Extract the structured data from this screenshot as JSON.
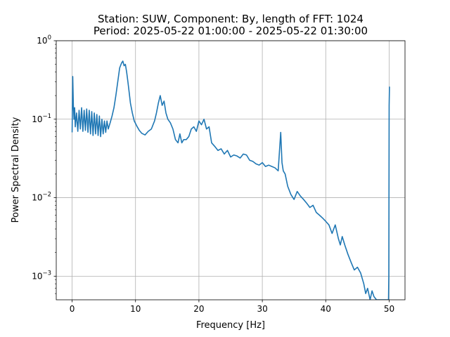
{
  "chart_data": {
    "type": "line",
    "title": "Station: SUW, Component: By, length of FFT: 1024",
    "subtitle": "Period: 2025-05-22 01:00:00 - 2025-05-22 01:30:00",
    "xlabel": "Frequency [Hz]",
    "ylabel": "Power Spectral Density",
    "xlim": [
      -2.5,
      52.5
    ],
    "ylim": [
      0.0005,
      1
    ],
    "yscale": "log",
    "grid": true,
    "xticks": [
      0,
      10,
      20,
      30,
      40,
      50
    ],
    "xtick_labels": [
      "0",
      "10",
      "20",
      "30",
      "40",
      "50"
    ],
    "yticks": [
      0.001,
      0.01,
      0.1,
      1
    ],
    "ytick_labels": [
      {
        "base": "10",
        "exp": "−3"
      },
      {
        "base": "10",
        "exp": "−2"
      },
      {
        "base": "10",
        "exp": "−1"
      },
      {
        "base": "10",
        "exp": "0"
      }
    ],
    "line_color": "#1f77b4",
    "series": [
      {
        "x": [
          0,
          0.1,
          0.2,
          0.3,
          0.4,
          0.5,
          0.7,
          0.9,
          1.1,
          1.3,
          1.5,
          1.7,
          1.9,
          2.1,
          2.3,
          2.5,
          2.7,
          2.9,
          3.1,
          3.3,
          3.5,
          3.7,
          3.9,
          4.1,
          4.3,
          4.5,
          4.7,
          4.9,
          5.1,
          5.3,
          5.5,
          5.7,
          6.0,
          6.3,
          6.6,
          6.9,
          7.2,
          7.5,
          7.8,
          8.0,
          8.2,
          8.4,
          8.6,
          8.8,
          9.0,
          9.2,
          9.5,
          9.8,
          10.2,
          10.6,
          11.0,
          11.5,
          12.0,
          12.5,
          13.0,
          13.3,
          13.6,
          13.9,
          14.2,
          14.5,
          14.8,
          15.1,
          15.5,
          15.9,
          16.3,
          16.7,
          17.0,
          17.3,
          17.6,
          18.0,
          18.4,
          18.8,
          19.2,
          19.6,
          20.0,
          20.4,
          20.8,
          21.2,
          21.6,
          22.0,
          22.5,
          23.0,
          23.5,
          24.0,
          24.5,
          25.0,
          25.5,
          26.0,
          26.5,
          27.0,
          27.5,
          28.0,
          28.5,
          29.0,
          29.5,
          30.0,
          30.5,
          31.0,
          31.5,
          32.0,
          32.5,
          32.9,
          33.1,
          33.3,
          33.6,
          34.0,
          34.5,
          35.0,
          35.5,
          36.0,
          36.5,
          37.0,
          37.5,
          38.0,
          38.5,
          39.0,
          39.5,
          40.0,
          40.5,
          41.0,
          41.5,
          42.0,
          42.3,
          42.6,
          43.0,
          43.5,
          44.0,
          44.5,
          45.0,
          45.5,
          46.0,
          46.3,
          46.6,
          47.0,
          47.3,
          47.6,
          48.0,
          48.4,
          48.8,
          49.2,
          49.6,
          49.8,
          49.9,
          49.95,
          50.0,
          50.05
        ],
        "y": [
          0.068,
          0.35,
          0.15,
          0.1,
          0.14,
          0.08,
          0.12,
          0.07,
          0.13,
          0.075,
          0.14,
          0.07,
          0.13,
          0.072,
          0.135,
          0.068,
          0.13,
          0.065,
          0.125,
          0.062,
          0.12,
          0.065,
          0.115,
          0.062,
          0.11,
          0.06,
          0.1,
          0.065,
          0.095,
          0.068,
          0.095,
          0.075,
          0.09,
          0.11,
          0.14,
          0.2,
          0.3,
          0.45,
          0.52,
          0.55,
          0.48,
          0.5,
          0.4,
          0.3,
          0.22,
          0.16,
          0.12,
          0.095,
          0.082,
          0.072,
          0.066,
          0.063,
          0.07,
          0.075,
          0.095,
          0.12,
          0.16,
          0.2,
          0.15,
          0.17,
          0.12,
          0.1,
          0.09,
          0.075,
          0.055,
          0.05,
          0.065,
          0.05,
          0.055,
          0.055,
          0.06,
          0.075,
          0.08,
          0.07,
          0.095,
          0.085,
          0.1,
          0.075,
          0.08,
          0.05,
          0.045,
          0.04,
          0.042,
          0.036,
          0.04,
          0.033,
          0.035,
          0.034,
          0.032,
          0.036,
          0.035,
          0.03,
          0.029,
          0.027,
          0.026,
          0.028,
          0.025,
          0.026,
          0.025,
          0.024,
          0.022,
          0.068,
          0.028,
          0.022,
          0.02,
          0.014,
          0.011,
          0.0095,
          0.012,
          0.0105,
          0.0095,
          0.0085,
          0.0075,
          0.008,
          0.0065,
          0.006,
          0.0055,
          0.005,
          0.0045,
          0.0035,
          0.0045,
          0.003,
          0.0025,
          0.0032,
          0.0025,
          0.0019,
          0.0015,
          0.0012,
          0.0013,
          0.0011,
          0.0008,
          0.0006,
          0.0007,
          0.0005,
          0.00065,
          0.00055,
          0.0005,
          0.0005,
          0.0005,
          0.0005,
          0.0005,
          0.0005,
          0.0005,
          0.001,
          0.15,
          0.26
        ]
      }
    ]
  }
}
